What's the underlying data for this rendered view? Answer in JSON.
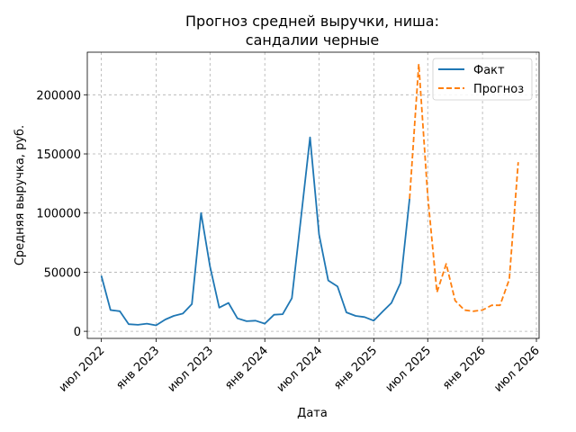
{
  "chart_data": {
    "type": "line",
    "title_line1": "Прогноз средней выручки, ниша:",
    "title_line2": "сандалии черные",
    "xlabel": "Дата",
    "ylabel": "Средняя выручка, руб.",
    "x_tick_labels": [
      "июл 2022",
      "янв 2023",
      "июл 2023",
      "янв 2024",
      "июл 2024",
      "янв 2025",
      "июл 2025",
      "янв 2026",
      "июл 2026"
    ],
    "x_tick_dates": [
      "2022-07-01",
      "2023-01-01",
      "2023-07-01",
      "2024-01-01",
      "2024-07-01",
      "2025-01-01",
      "2025-07-01",
      "2026-01-01",
      "2026-07-01"
    ],
    "y_ticks": [
      0,
      50000,
      100000,
      150000,
      200000
    ],
    "y_tick_labels": [
      "0",
      "50000",
      "100000",
      "150000",
      "200000"
    ],
    "xlim": [
      "2022-05-15",
      "2026-07-10"
    ],
    "ylim": [
      -6000,
      236000
    ],
    "grid": true,
    "legend_position": "top-right",
    "series": [
      {
        "name": "Факт",
        "color": "#1f77b4",
        "style": "solid",
        "points": [
          [
            "2022-07-01",
            47000
          ],
          [
            "2022-08-01",
            18000
          ],
          [
            "2022-09-01",
            17000
          ],
          [
            "2022-10-01",
            6000
          ],
          [
            "2022-11-01",
            5500
          ],
          [
            "2022-12-01",
            6500
          ],
          [
            "2023-01-01",
            5000
          ],
          [
            "2023-02-01",
            10000
          ],
          [
            "2023-03-01",
            13000
          ],
          [
            "2023-04-01",
            15000
          ],
          [
            "2023-05-01",
            23000
          ],
          [
            "2023-06-01",
            100000
          ],
          [
            "2023-07-01",
            55000
          ],
          [
            "2023-08-01",
            20000
          ],
          [
            "2023-09-01",
            24000
          ],
          [
            "2023-10-01",
            11000
          ],
          [
            "2023-11-01",
            8500
          ],
          [
            "2023-12-01",
            9000
          ],
          [
            "2024-01-01",
            6500
          ],
          [
            "2024-02-01",
            14000
          ],
          [
            "2024-03-01",
            14500
          ],
          [
            "2024-04-01",
            28000
          ],
          [
            "2024-05-01",
            95000
          ],
          [
            "2024-06-01",
            164000
          ],
          [
            "2024-07-01",
            82000
          ],
          [
            "2024-08-01",
            43000
          ],
          [
            "2024-09-01",
            38000
          ],
          [
            "2024-10-01",
            16000
          ],
          [
            "2024-11-01",
            13000
          ],
          [
            "2024-12-01",
            12000
          ],
          [
            "2025-01-01",
            9000
          ],
          [
            "2025-02-01",
            17000
          ],
          [
            "2025-03-01",
            24000
          ],
          [
            "2025-04-01",
            41000
          ],
          [
            "2025-05-01",
            112000
          ]
        ]
      },
      {
        "name": "Прогноз",
        "color": "#ff7f0e",
        "style": "dashed",
        "points": [
          [
            "2025-05-01",
            112000
          ],
          [
            "2025-06-01",
            226000
          ],
          [
            "2025-07-01",
            115000
          ],
          [
            "2025-08-01",
            33000
          ],
          [
            "2025-09-01",
            57000
          ],
          [
            "2025-10-01",
            26000
          ],
          [
            "2025-11-01",
            18000
          ],
          [
            "2025-12-01",
            17000
          ],
          [
            "2026-01-01",
            18000
          ],
          [
            "2026-02-01",
            22000
          ],
          [
            "2026-03-01",
            22000
          ],
          [
            "2026-04-01",
            44000
          ],
          [
            "2026-05-01",
            143000
          ]
        ]
      }
    ]
  }
}
